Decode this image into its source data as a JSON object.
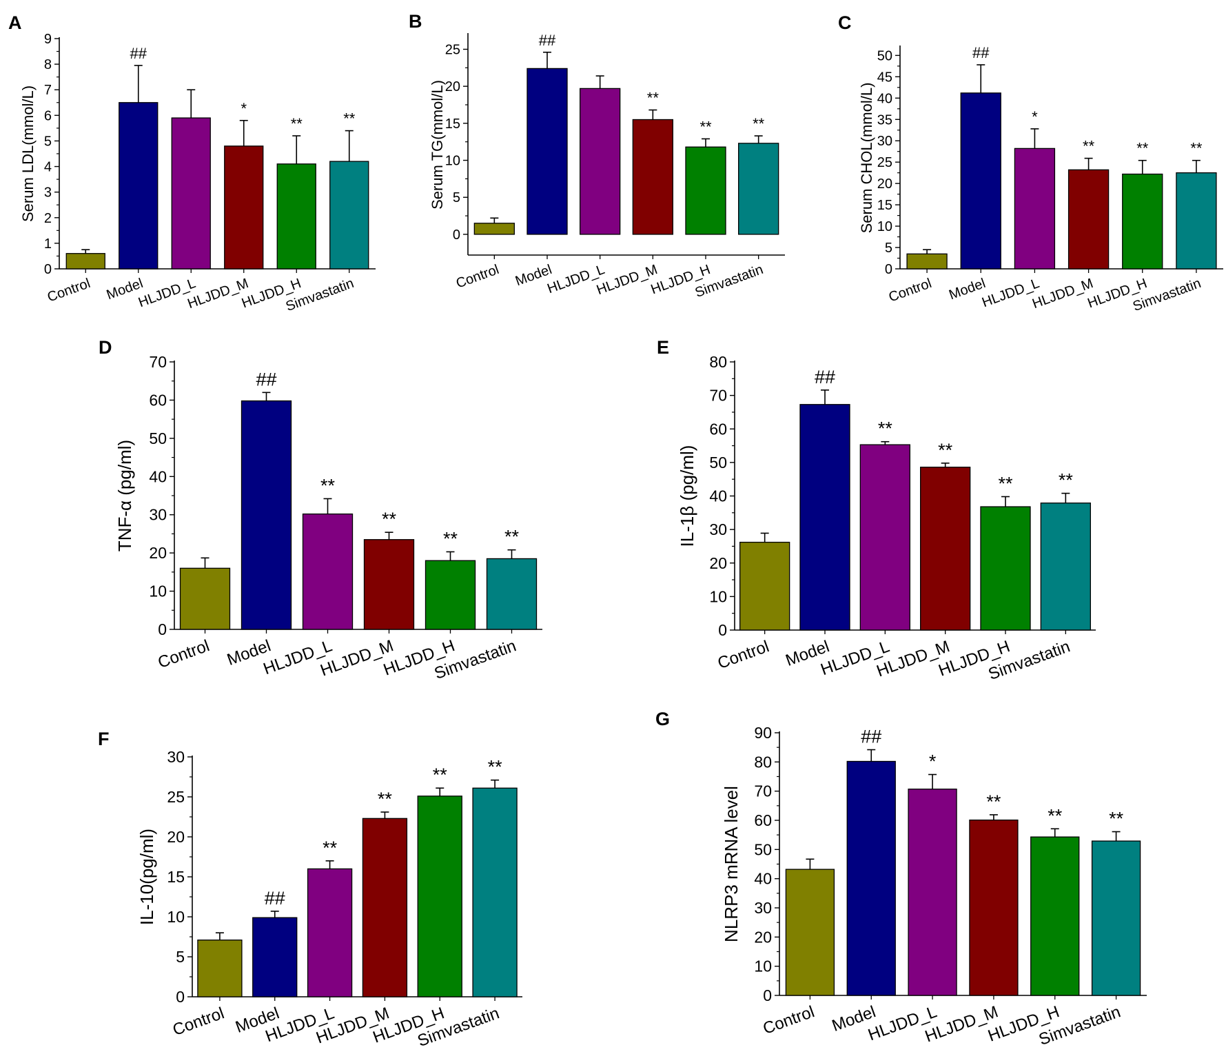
{
  "figure": {
    "categories": [
      "Control",
      "Model",
      "HLJDD_L",
      "HLJDD_M",
      "HLJDD_H",
      "Simvastatin"
    ],
    "colors": [
      "#808000",
      "#000080",
      "#800080",
      "#800000",
      "#008000",
      "#008080"
    ]
  },
  "chart_data": [
    {
      "id": "A",
      "panel_label": "A",
      "type": "bar",
      "ylabel": "Serum LDL(mmol/L)",
      "ylim": [
        0,
        9
      ],
      "yticks": [
        0,
        1,
        2,
        3,
        4,
        5,
        6,
        7,
        8,
        9
      ],
      "values": [
        0.6,
        6.5,
        5.9,
        4.8,
        4.1,
        4.2
      ],
      "errors": [
        0.15,
        1.45,
        1.1,
        1.0,
        1.1,
        1.2
      ],
      "significance": [
        "",
        "##",
        "",
        "*",
        "**",
        "**"
      ]
    },
    {
      "id": "B",
      "panel_label": "B",
      "type": "bar",
      "ylabel": "Serum TG(mmol/L)",
      "ylim": [
        -2.8,
        27
      ],
      "yticks": [
        0,
        5,
        10,
        15,
        20,
        25
      ],
      "values": [
        1.5,
        22.4,
        19.7,
        15.5,
        11.8,
        12.3
      ],
      "errors": [
        0.7,
        2.2,
        1.7,
        1.3,
        1.1,
        1.0
      ],
      "significance": [
        "",
        "##",
        "",
        "**",
        "**",
        "**"
      ]
    },
    {
      "id": "C",
      "panel_label": "C",
      "type": "bar",
      "ylabel": "Serum CHOL(mmol/L)",
      "ylim": [
        0,
        52
      ],
      "yticks": [
        0,
        5,
        10,
        15,
        20,
        25,
        30,
        35,
        40,
        45,
        50
      ],
      "values": [
        3.5,
        41.2,
        28.2,
        23.2,
        22.2,
        22.5
      ],
      "errors": [
        1.0,
        6.6,
        4.6,
        2.7,
        3.2,
        2.9
      ],
      "significance": [
        "",
        "##",
        "*",
        "**",
        "**",
        "**"
      ]
    },
    {
      "id": "D",
      "panel_label": "D",
      "type": "bar",
      "ylabel": "TNF-α (pg/ml)",
      "ylim": [
        0,
        70
      ],
      "yticks": [
        0,
        10,
        20,
        30,
        40,
        50,
        60,
        70
      ],
      "values": [
        16.0,
        59.8,
        30.2,
        23.5,
        18.0,
        18.5
      ],
      "errors": [
        2.7,
        2.2,
        4.0,
        1.9,
        2.3,
        2.3
      ],
      "significance": [
        "",
        "##",
        "**",
        "**",
        "**",
        "**"
      ]
    },
    {
      "id": "E",
      "panel_label": "E",
      "type": "bar",
      "ylabel": "IL-1β (pg/ml)",
      "ylim": [
        0,
        80
      ],
      "yticks": [
        0,
        10,
        20,
        30,
        40,
        50,
        60,
        70,
        80
      ],
      "values": [
        26.2,
        67.3,
        55.3,
        48.6,
        36.8,
        37.9
      ],
      "errors": [
        2.7,
        4.3,
        0.9,
        1.2,
        3.0,
        2.9
      ],
      "significance": [
        "",
        "##",
        "**",
        "**",
        "**",
        "**"
      ]
    },
    {
      "id": "F",
      "panel_label": "F",
      "type": "bar",
      "ylabel": "IL-10(pg/ml)",
      "ylim": [
        0,
        30
      ],
      "yticks": [
        0,
        5,
        10,
        15,
        20,
        25,
        30
      ],
      "values": [
        7.1,
        9.9,
        16.0,
        22.3,
        25.1,
        26.1
      ],
      "errors": [
        0.9,
        0.8,
        1.0,
        0.8,
        1.0,
        1.0
      ],
      "significance": [
        "",
        "##",
        "**",
        "**",
        "**",
        "**"
      ]
    },
    {
      "id": "G",
      "panel_label": "G",
      "type": "bar",
      "ylabel": "NLRP3 mRNA level",
      "ylim": [
        0,
        90
      ],
      "yticks": [
        0,
        10,
        20,
        30,
        40,
        50,
        60,
        70,
        80,
        90
      ],
      "values": [
        43.2,
        80.2,
        70.7,
        60.1,
        54.3,
        52.9
      ],
      "errors": [
        3.5,
        4.0,
        5.0,
        1.8,
        2.8,
        3.2
      ],
      "significance": [
        "",
        "##",
        "*",
        "**",
        "**",
        "**"
      ]
    }
  ]
}
